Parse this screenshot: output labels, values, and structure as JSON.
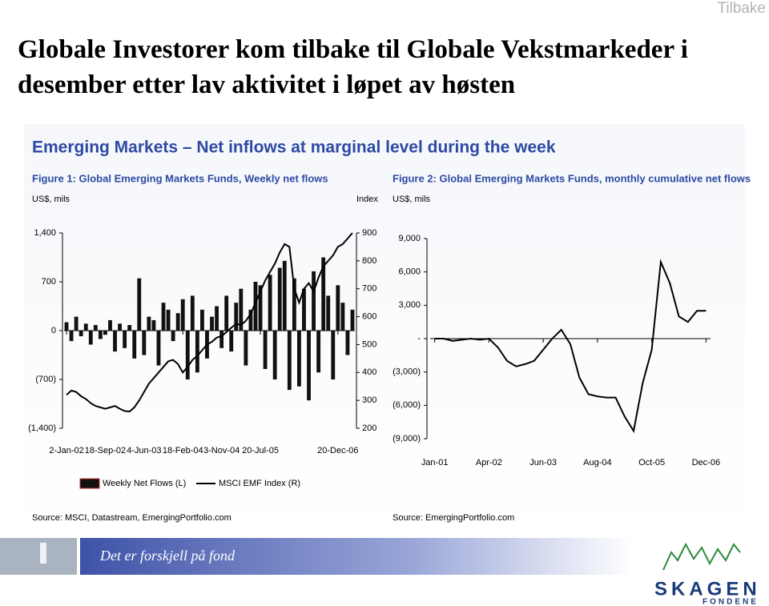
{
  "slide": {
    "back": "Tilbake",
    "title": "Globale Investorer kom tilbake til Globale Vekstmarkeder i desember etter lav aktivitet i løpet av høsten",
    "banner": "Emerging Markets – Net inflows at marginal level during the week",
    "footer": "Det er forskjell på fond",
    "logo": "SKAGEN",
    "logo_sub": "FONDENE"
  },
  "chart_data": [
    {
      "type": "bar",
      "title": "Figure 1: Global Emerging Markets Funds, Weekly net flows",
      "y_label": "US$, mils",
      "y2_label": "Index",
      "source": "Source: MSCI, Datastream, EmergingPortfolio.com",
      "categories": [
        "2-Jan-02",
        null,
        null,
        null,
        null,
        null,
        null,
        null,
        "18-Sep-02",
        null,
        null,
        null,
        null,
        null,
        null,
        null,
        "4-Jun-03",
        null,
        null,
        null,
        null,
        null,
        null,
        null,
        "18-Feb-04",
        null,
        null,
        null,
        null,
        null,
        null,
        null,
        "3-Nov-04",
        null,
        null,
        null,
        null,
        null,
        null,
        null,
        "20-Jul-05",
        null,
        null,
        null,
        null,
        null,
        null,
        null,
        null,
        null,
        null,
        null,
        null,
        null,
        null,
        null,
        "20-Dec-06",
        null,
        null,
        null
      ],
      "ylim": [
        -1400,
        1400
      ],
      "yticks": [
        {
          "value": 1400,
          "label": "1,400"
        },
        700,
        0,
        {
          "value": -700,
          "label": "(700)"
        },
        {
          "value": -1400,
          "label": "(1,400)"
        }
      ],
      "y2lim": [
        200,
        900
      ],
      "y2ticks": [
        200,
        300,
        400,
        500,
        600,
        700,
        800,
        900
      ],
      "legend": "bottom",
      "series": [
        {
          "name": "Weekly Net Flows (L)",
          "type": "bar",
          "color": "#111111",
          "values": [
            120,
            -150,
            200,
            -80,
            100,
            -200,
            80,
            -120,
            -60,
            150,
            -300,
            100,
            -250,
            80,
            -400,
            750,
            -350,
            200,
            150,
            -500,
            400,
            300,
            -150,
            250,
            450,
            -700,
            500,
            -600,
            300,
            -400,
            200,
            350,
            -250,
            500,
            -300,
            400,
            600,
            -500,
            300,
            700,
            650,
            -550,
            800,
            -700,
            900,
            1000,
            -850,
            750,
            -800,
            600,
            -1000,
            850,
            -600,
            1050,
            500,
            -700,
            650,
            400,
            -350,
            300
          ]
        },
        {
          "name": "MSCI EMF Index (R)",
          "type": "line",
          "axis": "y2",
          "color": "#000000",
          "values": [
            320,
            335,
            330,
            315,
            305,
            290,
            280,
            275,
            270,
            275,
            280,
            270,
            262,
            260,
            275,
            300,
            330,
            360,
            380,
            400,
            420,
            440,
            445,
            430,
            400,
            420,
            445,
            460,
            480,
            500,
            510,
            525,
            530,
            545,
            560,
            575,
            570,
            585,
            610,
            650,
            690,
            730,
            760,
            790,
            830,
            860,
            850,
            700,
            650,
            700,
            720,
            690,
            740,
            780,
            800,
            820,
            850,
            860,
            880,
            900
          ]
        }
      ]
    },
    {
      "type": "line",
      "title": "Figure 2: Global Emerging Markets Funds, monthly cumulative net flows",
      "y_label": "US$, mils",
      "source": "Source: EmergingPortfolio.com",
      "categories": [
        "Jan-01",
        null,
        null,
        null,
        null,
        null,
        "Apr-02",
        null,
        null,
        null,
        null,
        null,
        "Jun-03",
        null,
        null,
        null,
        null,
        null,
        "Aug-04",
        null,
        null,
        null,
        null,
        null,
        "Oct-05",
        null,
        null,
        null,
        null,
        null,
        "Dec-06"
      ],
      "ylim": [
        -9000,
        9000
      ],
      "yticks": [
        {
          "value": 9000,
          "label": "9,000"
        },
        {
          "value": 6000,
          "label": "6,000"
        },
        {
          "value": 3000,
          "label": "3,000"
        },
        {
          "value": 0,
          "label": "-"
        },
        {
          "value": -3000,
          "label": "(3,000)"
        },
        {
          "value": -6000,
          "label": "(6,000)"
        },
        {
          "value": -9000,
          "label": "(9,000)"
        }
      ],
      "series": [
        {
          "type": "line",
          "color": "#000000",
          "values": [
            0,
            0,
            -200,
            -100,
            0,
            -100,
            0,
            -800,
            -2000,
            -2500,
            -2300,
            -2000,
            -1000,
            0,
            800,
            -500,
            -3500,
            -5000,
            -5200,
            -5300,
            -5300,
            -7000,
            -8300,
            -4000,
            -1000,
            6900,
            5000,
            2000,
            1500,
            2500,
            2500
          ]
        }
      ]
    }
  ]
}
